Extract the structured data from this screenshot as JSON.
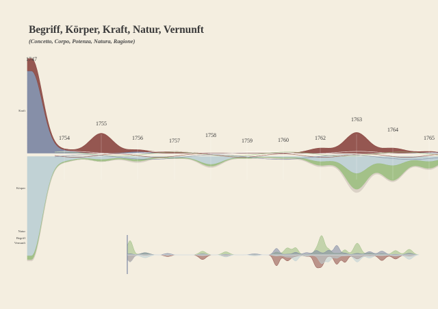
{
  "title": "Begriff, Körper, Kraft, Natur, Vernunft",
  "subtitle": "(Concetto, Corpo, Potenza, Natura, Ragione)",
  "chart_data": {
    "type": "area",
    "layout": "streamgraph",
    "x": [
      "1747",
      "1754",
      "1755",
      "1756",
      "1757",
      "1758",
      "1759",
      "1760",
      "1762",
      "1763",
      "1764",
      "1765"
    ],
    "series": [
      {
        "name": "Kraft",
        "color": "#7c87a3",
        "values": [
          100,
          3,
          0,
          2,
          0,
          0,
          0,
          0,
          0,
          0,
          0,
          1
        ]
      },
      {
        "name": "Körper",
        "color": "#bccfd4",
        "values": [
          100,
          4,
          3,
          3,
          1,
          8,
          1,
          1,
          5,
          17,
          9,
          5
        ]
      },
      {
        "name": "Natur",
        "color": "#8c4a44",
        "values": [
          15,
          1,
          24,
          2,
          2,
          0,
          0,
          0,
          6,
          25,
          6,
          1
        ]
      },
      {
        "name": "Begriff",
        "color": "#d8cfc4",
        "values": [
          1,
          0,
          0,
          1,
          0,
          1,
          0,
          1,
          1,
          3,
          1,
          1
        ]
      },
      {
        "name": "Vernunft",
        "color": "#9bbd80",
        "values": [
          4,
          1,
          2,
          2,
          1,
          2,
          1,
          1,
          4,
          16,
          15,
          7
        ]
      }
    ],
    "minimap": true
  }
}
